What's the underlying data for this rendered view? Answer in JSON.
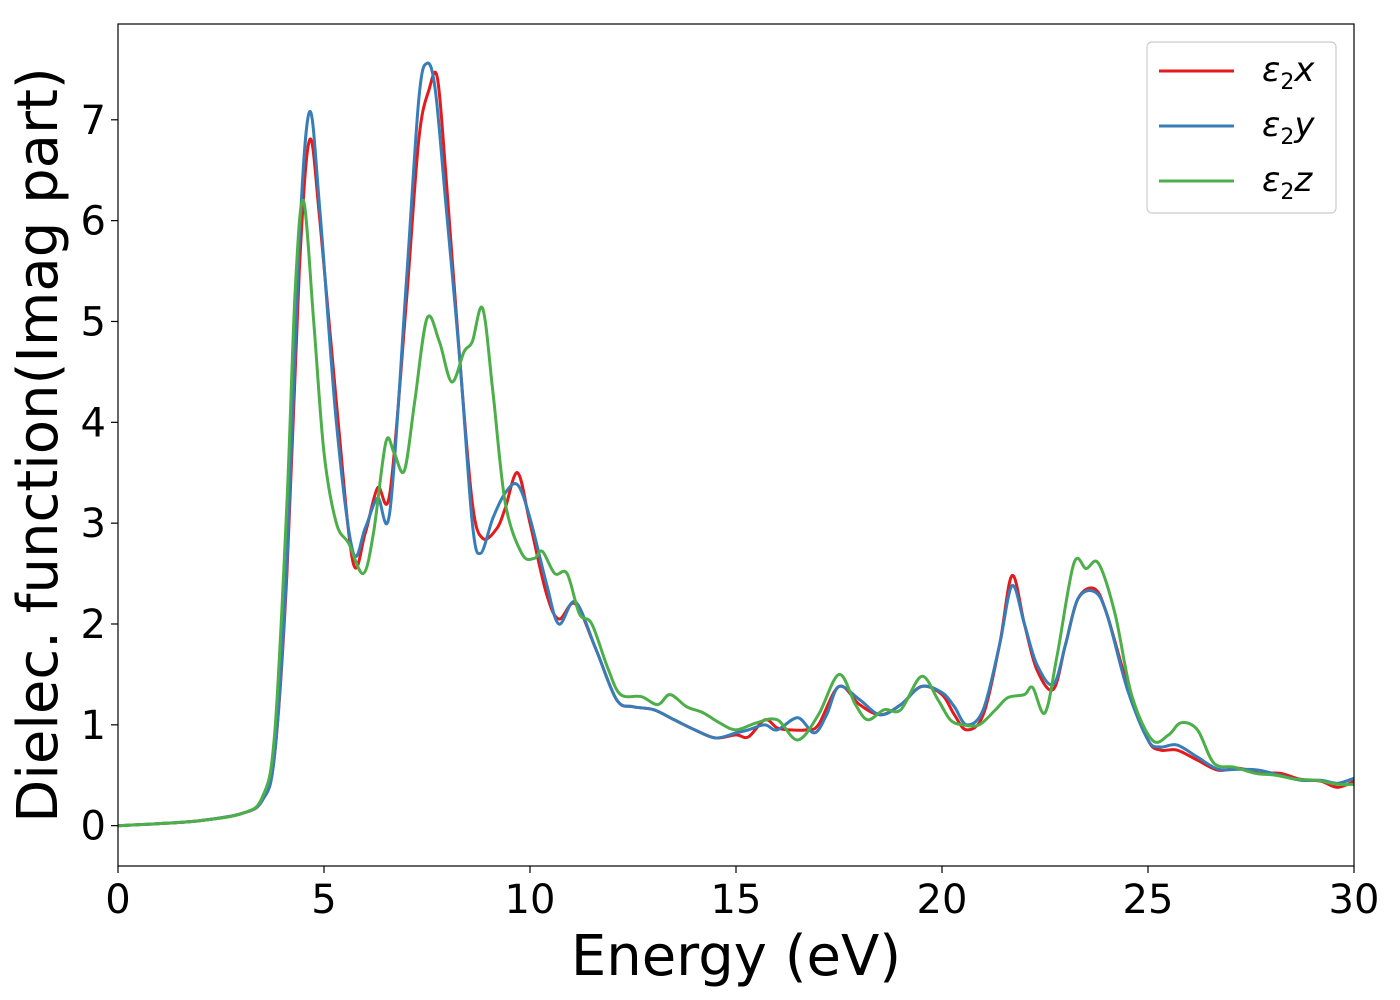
{
  "chart_data": {
    "type": "line",
    "title": "",
    "xlabel": "Energy (eV)",
    "ylabel": "Dielec. function(Imag part)",
    "xlim": [
      0,
      30
    ],
    "ylim": [
      -0.4,
      7.95
    ],
    "xticks": [
      0,
      5,
      10,
      15,
      20,
      25,
      30
    ],
    "yticks": [
      0,
      1,
      2,
      3,
      4,
      5,
      6,
      7
    ],
    "grid": false,
    "legend_position": "top-right",
    "series": [
      {
        "name": "ε2x",
        "name_main": "ε",
        "name_sub": "2",
        "name_tail": "x",
        "color": "#e41a1c",
        "points": [
          [
            0,
            0
          ],
          [
            1,
            0.02
          ],
          [
            2,
            0.05
          ],
          [
            3,
            0.12
          ],
          [
            3.5,
            0.25
          ],
          [
            3.8,
            0.7
          ],
          [
            4.1,
            2.5
          ],
          [
            4.4,
            5.5
          ],
          [
            4.65,
            6.8
          ],
          [
            4.9,
            6.0
          ],
          [
            5.3,
            4.2
          ],
          [
            5.7,
            2.62
          ],
          [
            6.0,
            2.9
          ],
          [
            6.3,
            3.35
          ],
          [
            6.6,
            3.3
          ],
          [
            7.0,
            5.2
          ],
          [
            7.3,
            6.8
          ],
          [
            7.55,
            7.3
          ],
          [
            7.75,
            7.42
          ],
          [
            7.95,
            6.5
          ],
          [
            8.3,
            4.6
          ],
          [
            8.6,
            3.2
          ],
          [
            8.85,
            2.85
          ],
          [
            9.2,
            2.95
          ],
          [
            9.4,
            3.15
          ],
          [
            9.7,
            3.5
          ],
          [
            10.0,
            3.0
          ],
          [
            10.4,
            2.3
          ],
          [
            10.7,
            2.05
          ],
          [
            11.1,
            2.2
          ],
          [
            11.6,
            1.75
          ],
          [
            12.1,
            1.25
          ],
          [
            12.5,
            1.18
          ],
          [
            13.0,
            1.15
          ],
          [
            13.5,
            1.05
          ],
          [
            14.0,
            0.95
          ],
          [
            14.5,
            0.87
          ],
          [
            15.0,
            0.9
          ],
          [
            15.3,
            0.88
          ],
          [
            15.7,
            1.05
          ],
          [
            16.0,
            0.97
          ],
          [
            16.3,
            0.95
          ],
          [
            16.7,
            0.95
          ],
          [
            17.0,
            1.0
          ],
          [
            17.5,
            1.38
          ],
          [
            18.0,
            1.2
          ],
          [
            18.5,
            1.1
          ],
          [
            19.0,
            1.2
          ],
          [
            19.5,
            1.38
          ],
          [
            20.0,
            1.3
          ],
          [
            20.3,
            1.1
          ],
          [
            20.6,
            0.95
          ],
          [
            21.0,
            1.1
          ],
          [
            21.4,
            1.8
          ],
          [
            21.7,
            2.48
          ],
          [
            22.0,
            2.0
          ],
          [
            22.3,
            1.55
          ],
          [
            22.7,
            1.35
          ],
          [
            23.0,
            1.8
          ],
          [
            23.3,
            2.25
          ],
          [
            23.7,
            2.35
          ],
          [
            24.0,
            2.1
          ],
          [
            24.5,
            1.4
          ],
          [
            25.0,
            0.85
          ],
          [
            25.3,
            0.75
          ],
          [
            25.7,
            0.75
          ],
          [
            26.2,
            0.65
          ],
          [
            26.7,
            0.55
          ],
          [
            27.2,
            0.57
          ],
          [
            27.7,
            0.52
          ],
          [
            28.2,
            0.52
          ],
          [
            28.7,
            0.46
          ],
          [
            29.2,
            0.44
          ],
          [
            29.6,
            0.38
          ],
          [
            30.0,
            0.44
          ]
        ]
      },
      {
        "name": "ε2y",
        "name_main": "ε",
        "name_sub": "2",
        "name_tail": "y",
        "color": "#377eb8",
        "points": [
          [
            0,
            0
          ],
          [
            1,
            0.02
          ],
          [
            2,
            0.05
          ],
          [
            3,
            0.12
          ],
          [
            3.5,
            0.25
          ],
          [
            3.8,
            0.7
          ],
          [
            4.1,
            2.6
          ],
          [
            4.4,
            5.8
          ],
          [
            4.65,
            7.08
          ],
          [
            4.9,
            6.1
          ],
          [
            5.3,
            4.0
          ],
          [
            5.7,
            2.72
          ],
          [
            6.0,
            2.95
          ],
          [
            6.3,
            3.25
          ],
          [
            6.6,
            3.12
          ],
          [
            7.0,
            5.4
          ],
          [
            7.3,
            7.2
          ],
          [
            7.5,
            7.56
          ],
          [
            7.7,
            7.3
          ],
          [
            7.95,
            6.2
          ],
          [
            8.3,
            4.6
          ],
          [
            8.6,
            3.0
          ],
          [
            8.8,
            2.7
          ],
          [
            9.1,
            3.05
          ],
          [
            9.4,
            3.3
          ],
          [
            9.7,
            3.38
          ],
          [
            10.0,
            3.05
          ],
          [
            10.4,
            2.4
          ],
          [
            10.7,
            2.0
          ],
          [
            11.1,
            2.22
          ],
          [
            11.6,
            1.75
          ],
          [
            12.1,
            1.25
          ],
          [
            12.5,
            1.18
          ],
          [
            13.0,
            1.15
          ],
          [
            13.5,
            1.05
          ],
          [
            14.0,
            0.95
          ],
          [
            14.5,
            0.87
          ],
          [
            15.0,
            0.92
          ],
          [
            15.3,
            0.95
          ],
          [
            15.7,
            1.0
          ],
          [
            16.0,
            0.95
          ],
          [
            16.5,
            1.07
          ],
          [
            16.9,
            0.92
          ],
          [
            17.2,
            1.1
          ],
          [
            17.5,
            1.38
          ],
          [
            18.0,
            1.25
          ],
          [
            18.5,
            1.1
          ],
          [
            19.0,
            1.2
          ],
          [
            19.5,
            1.38
          ],
          [
            20.0,
            1.32
          ],
          [
            20.3,
            1.18
          ],
          [
            20.6,
            1.0
          ],
          [
            21.0,
            1.15
          ],
          [
            21.4,
            1.8
          ],
          [
            21.7,
            2.38
          ],
          [
            22.0,
            2.0
          ],
          [
            22.3,
            1.6
          ],
          [
            22.7,
            1.4
          ],
          [
            23.0,
            1.8
          ],
          [
            23.3,
            2.25
          ],
          [
            23.7,
            2.32
          ],
          [
            24.0,
            2.1
          ],
          [
            24.5,
            1.35
          ],
          [
            25.0,
            0.85
          ],
          [
            25.3,
            0.78
          ],
          [
            25.7,
            0.8
          ],
          [
            26.2,
            0.68
          ],
          [
            26.7,
            0.56
          ],
          [
            27.2,
            0.56
          ],
          [
            27.7,
            0.55
          ],
          [
            28.2,
            0.5
          ],
          [
            28.7,
            0.45
          ],
          [
            29.2,
            0.45
          ],
          [
            29.6,
            0.42
          ],
          [
            30.0,
            0.47
          ]
        ]
      },
      {
        "name": "ε2z",
        "name_main": "ε",
        "name_sub": "2",
        "name_tail": "z",
        "color": "#4daf4a",
        "points": [
          [
            0,
            0
          ],
          [
            1,
            0.02
          ],
          [
            2,
            0.05
          ],
          [
            3,
            0.12
          ],
          [
            3.5,
            0.28
          ],
          [
            3.8,
            0.9
          ],
          [
            4.1,
            3.2
          ],
          [
            4.3,
            5.3
          ],
          [
            4.5,
            6.2
          ],
          [
            4.75,
            5.0
          ],
          [
            5.0,
            3.7
          ],
          [
            5.3,
            3.0
          ],
          [
            5.6,
            2.8
          ],
          [
            5.95,
            2.5
          ],
          [
            6.2,
            2.9
          ],
          [
            6.5,
            3.8
          ],
          [
            6.7,
            3.7
          ],
          [
            6.95,
            3.52
          ],
          [
            7.2,
            4.2
          ],
          [
            7.5,
            5.03
          ],
          [
            7.8,
            4.8
          ],
          [
            8.1,
            4.4
          ],
          [
            8.4,
            4.7
          ],
          [
            8.6,
            4.8
          ],
          [
            8.85,
            5.13
          ],
          [
            9.1,
            4.3
          ],
          [
            9.4,
            3.2
          ],
          [
            9.8,
            2.7
          ],
          [
            10.1,
            2.65
          ],
          [
            10.3,
            2.72
          ],
          [
            10.6,
            2.5
          ],
          [
            10.9,
            2.5
          ],
          [
            11.2,
            2.1
          ],
          [
            11.5,
            2.0
          ],
          [
            11.9,
            1.55
          ],
          [
            12.2,
            1.3
          ],
          [
            12.7,
            1.28
          ],
          [
            13.1,
            1.2
          ],
          [
            13.4,
            1.3
          ],
          [
            13.8,
            1.18
          ],
          [
            14.2,
            1.12
          ],
          [
            14.6,
            1.02
          ],
          [
            15.0,
            0.95
          ],
          [
            15.5,
            1.02
          ],
          [
            16.0,
            1.05
          ],
          [
            16.5,
            0.85
          ],
          [
            17.0,
            1.1
          ],
          [
            17.5,
            1.5
          ],
          [
            17.9,
            1.2
          ],
          [
            18.2,
            1.05
          ],
          [
            18.6,
            1.15
          ],
          [
            19.0,
            1.15
          ],
          [
            19.5,
            1.48
          ],
          [
            19.9,
            1.25
          ],
          [
            20.2,
            1.05
          ],
          [
            20.5,
            1.0
          ],
          [
            20.9,
            1.0
          ],
          [
            21.3,
            1.15
          ],
          [
            21.6,
            1.27
          ],
          [
            22.0,
            1.3
          ],
          [
            22.2,
            1.37
          ],
          [
            22.5,
            1.12
          ],
          [
            22.8,
            1.7
          ],
          [
            23.2,
            2.6
          ],
          [
            23.5,
            2.55
          ],
          [
            23.8,
            2.6
          ],
          [
            24.2,
            2.1
          ],
          [
            24.6,
            1.3
          ],
          [
            25.1,
            0.85
          ],
          [
            25.5,
            0.9
          ],
          [
            25.8,
            1.02
          ],
          [
            26.2,
            0.95
          ],
          [
            26.6,
            0.62
          ],
          [
            27.1,
            0.58
          ],
          [
            27.6,
            0.52
          ],
          [
            28.1,
            0.5
          ],
          [
            28.6,
            0.46
          ],
          [
            29.1,
            0.45
          ],
          [
            29.6,
            0.41
          ],
          [
            30.0,
            0.41
          ]
        ]
      }
    ]
  }
}
